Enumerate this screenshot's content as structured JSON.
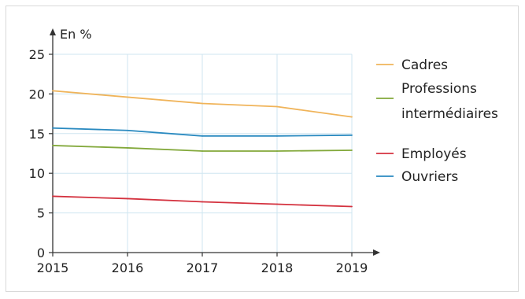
{
  "chart_data": {
    "type": "line",
    "unit_label": "En %",
    "x": [
      2015,
      2016,
      2017,
      2018,
      2019
    ],
    "x_tick_labels": [
      "2015",
      "2016",
      "2017",
      "2018",
      "2019"
    ],
    "y_tick_labels": [
      "0",
      "5",
      "10",
      "15",
      "20",
      "25"
    ],
    "y_ticks": [
      0,
      5,
      10,
      15,
      20,
      25
    ],
    "ylim": [
      0,
      25
    ],
    "grid": true,
    "legend_position": "right",
    "series": [
      {
        "name": "Cadres",
        "name_lines": [
          "Cadres"
        ],
        "color": "#f0b45a",
        "values": [
          20.4,
          19.6,
          18.8,
          18.4,
          17.1
        ]
      },
      {
        "name": "Professions intermédiaires",
        "name_lines": [
          "Professions",
          "intermédiaires"
        ],
        "color": "#82a83a",
        "values": [
          13.5,
          13.2,
          12.8,
          12.8,
          12.9
        ]
      },
      {
        "name": "Employés",
        "name_lines": [
          "Employés"
        ],
        "color": "#d4323f",
        "values": [
          7.1,
          6.8,
          6.4,
          6.1,
          5.8
        ]
      },
      {
        "name": "Ouvriers",
        "name_lines": [
          "Ouvriers"
        ],
        "color": "#2a8ac0",
        "values": [
          15.7,
          15.4,
          14.7,
          14.7,
          14.8
        ]
      }
    ]
  }
}
